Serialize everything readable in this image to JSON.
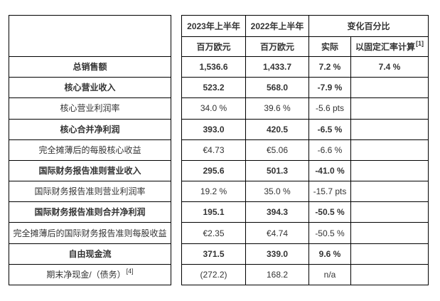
{
  "table": {
    "header": {
      "col_2023": "2023年上半年",
      "col_2022": "2022年上半年",
      "col_change": "变化百分比",
      "unit_2023": "百万欧元",
      "unit_2022": "百万欧元",
      "col_actual": "实际",
      "col_cer": "以固定汇率计算",
      "col_cer_sup": "[1]"
    },
    "rows": [
      {
        "label": "总销售额",
        "label_sup": "",
        "v2023": "1,536.6",
        "v2022": "1,433.7",
        "actual": "7.2 %",
        "cer": "7.4 %"
      },
      {
        "label": "核心营业收入",
        "label_sup": "",
        "v2023": "523.2",
        "v2022": "568.0",
        "actual": "-7.9 %",
        "cer": ""
      },
      {
        "label": "核心营业利润率",
        "label_sup": "",
        "v2023": "34.0 %",
        "v2022": "39.6 %",
        "actual": "-5.6 pts",
        "cer": ""
      },
      {
        "label": "核心合并净利润",
        "label_sup": "",
        "v2023": "393.0",
        "v2022": "420.5",
        "actual": "-6.5 %",
        "cer": ""
      },
      {
        "label": "完全摊薄后的每股核心收益",
        "label_sup": "",
        "v2023": "€4.73",
        "v2022": "€5.06",
        "actual": "-6.6 %",
        "cer": ""
      },
      {
        "label": "国际财务报告准则营业收入",
        "label_sup": "",
        "v2023": "295.6",
        "v2022": "501.3",
        "actual": "-41.0 %",
        "cer": ""
      },
      {
        "label": "国际财务报告准则营业利润率",
        "label_sup": "",
        "v2023": "19.2 %",
        "v2022": "35.0 %",
        "actual": "-15.7 pts",
        "cer": ""
      },
      {
        "label": "国际财务报告准则合并净利润",
        "label_sup": "",
        "v2023": "195.1",
        "v2022": "394.3",
        "actual": "-50.5 %",
        "cer": ""
      },
      {
        "label": "完全摊薄后的国际财务报告准则每股收益",
        "label_sup": "",
        "v2023": "€2.35",
        "v2022": "€4.74",
        "actual": "-50.5 %",
        "cer": ""
      },
      {
        "label": "自由现金流",
        "label_sup": "",
        "v2023": "371.5",
        "v2022": "339.0",
        "actual": "9.6 %",
        "cer": ""
      },
      {
        "label": "期末净现金/（债务）",
        "label_sup": "[4]",
        "v2023": "(272.2)",
        "v2022": "168.2",
        "actual": "n/a",
        "cer": ""
      }
    ]
  },
  "colors": {
    "border": "#000000",
    "text": "#333333",
    "background": "#ffffff"
  }
}
